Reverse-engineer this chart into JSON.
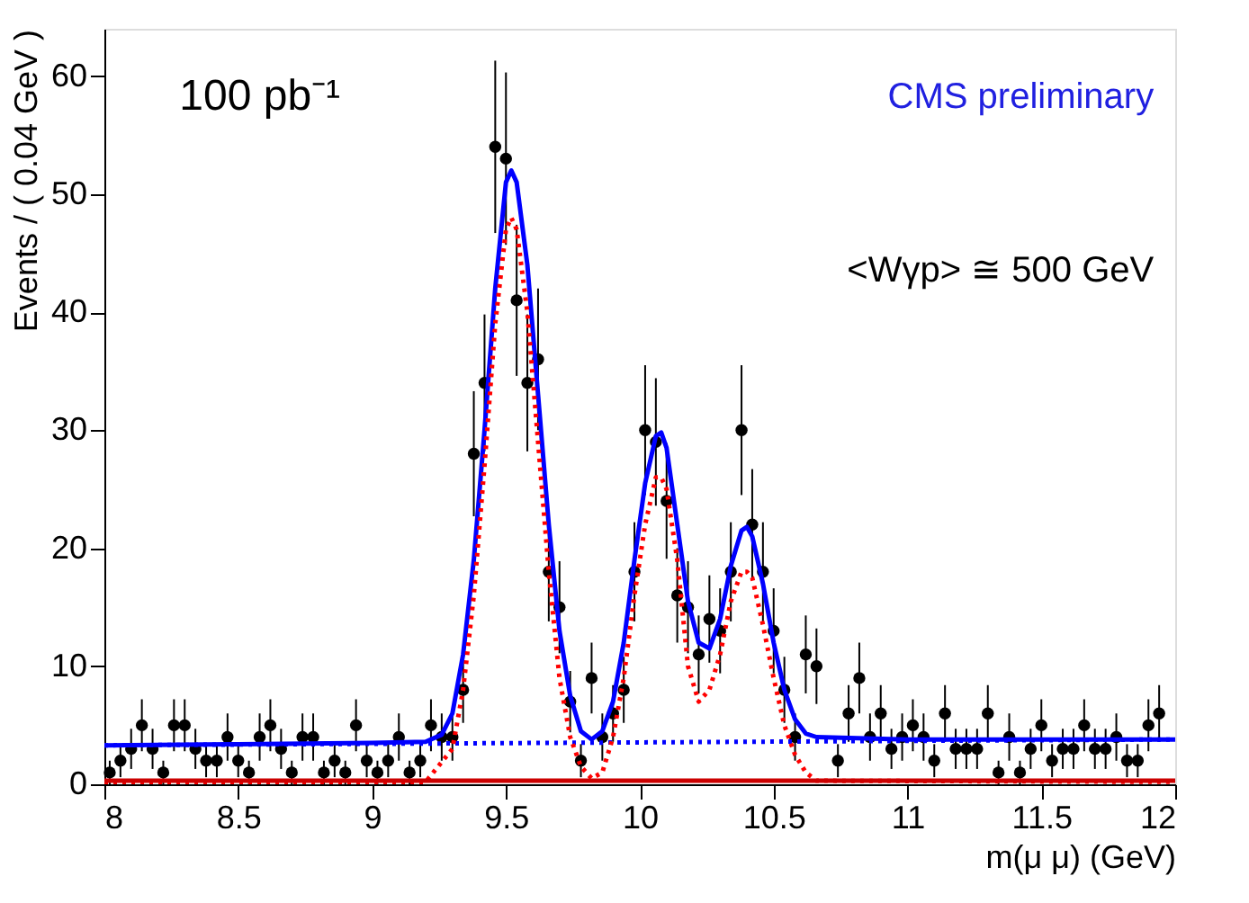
{
  "chart_data": {
    "type": "scatter",
    "xlabel": "m(μ μ) (GeV)",
    "ylabel": "Events / ( 0.04 GeV )",
    "xlim": [
      8,
      12
    ],
    "xticks": [
      8,
      8.5,
      9,
      9.5,
      10,
      10.5,
      11,
      11.5,
      12
    ],
    "ylim": [
      0,
      64
    ],
    "yticks": [
      0,
      10,
      20,
      30,
      40,
      50,
      60
    ],
    "annotations": [
      "100 pb⁻¹",
      "CMS preliminary",
      "<Wγp> ≅ 500 GeV"
    ],
    "series": [
      {
        "color": "#000000",
        "marker": "circle",
        "x": [
          8.02,
          8.06,
          8.1,
          8.14,
          8.18,
          8.22,
          8.26,
          8.3,
          8.34,
          8.38,
          8.42,
          8.46,
          8.5,
          8.54,
          8.58,
          8.62,
          8.66,
          8.7,
          8.74,
          8.78,
          8.82,
          8.86,
          8.9,
          8.94,
          8.98,
          9.02,
          9.06,
          9.1,
          9.14,
          9.18,
          9.22,
          9.26,
          9.3,
          9.34,
          9.38,
          9.42,
          9.46,
          9.5,
          9.54,
          9.58,
          9.62,
          9.66,
          9.7,
          9.74,
          9.78,
          9.82,
          9.86,
          9.9,
          9.94,
          9.98,
          10.02,
          10.06,
          10.1,
          10.14,
          10.18,
          10.22,
          10.26,
          10.3,
          10.34,
          10.38,
          10.42,
          10.46,
          10.5,
          10.54,
          10.58,
          10.62,
          10.66,
          10.74,
          10.78,
          10.82,
          10.86,
          10.9,
          10.94,
          10.98,
          11.02,
          11.06,
          11.1,
          11.14,
          11.18,
          11.22,
          11.26,
          11.3,
          11.34,
          11.38,
          11.42,
          11.46,
          11.5,
          11.54,
          11.58,
          11.62,
          11.66,
          11.7,
          11.74,
          11.78,
          11.82,
          11.86,
          11.9,
          11.94
        ],
        "values": [
          1,
          2,
          3,
          5,
          3,
          1,
          5,
          5,
          3,
          2,
          2,
          4,
          2,
          1,
          4,
          5,
          3,
          1,
          4,
          4,
          1,
          2,
          1,
          5,
          2,
          1,
          2,
          4,
          1,
          2,
          5,
          4,
          4,
          8,
          28,
          34,
          54,
          53,
          41,
          34,
          36,
          18,
          15,
          7,
          2,
          9,
          4,
          6,
          8,
          18,
          30,
          29,
          24,
          16,
          15,
          11,
          14,
          13,
          18,
          30,
          22,
          18,
          13,
          8,
          4,
          11,
          10,
          2,
          6,
          9,
          4,
          6,
          3,
          4,
          5,
          4,
          2,
          6,
          3,
          3,
          3,
          6,
          1,
          4,
          1,
          3,
          5,
          2,
          3,
          3,
          5,
          3,
          3,
          4,
          2,
          2,
          5,
          6
        ],
        "errors": [
          1,
          1.4,
          1.7,
          2.2,
          1.7,
          1,
          2.2,
          2.2,
          1.7,
          1.4,
          1.4,
          2,
          1.4,
          1,
          2,
          2.2,
          1.7,
          1,
          2,
          2,
          1,
          1.4,
          1,
          2.2,
          1.4,
          1,
          1.4,
          2,
          1,
          1.4,
          2.2,
          2,
          2,
          2.8,
          5.3,
          5.8,
          7.3,
          7.3,
          6.4,
          5.8,
          6,
          4.2,
          3.9,
          2.6,
          1.4,
          3,
          2,
          2.4,
          2.8,
          4.2,
          5.5,
          5.4,
          4.9,
          4,
          3.9,
          3.3,
          3.7,
          3.6,
          4.2,
          5.5,
          4.7,
          4.2,
          3.6,
          2.8,
          2,
          3.3,
          3.2,
          1.4,
          2.4,
          3,
          2,
          2.4,
          1.7,
          2,
          2.2,
          2,
          1.4,
          2.4,
          1.7,
          1.7,
          1.7,
          2.4,
          1,
          2,
          1,
          1.7,
          2.2,
          1.4,
          1.7,
          1.7,
          2.2,
          1.7,
          1.7,
          2,
          1.4,
          1.4,
          2.2,
          2.4
        ]
      },
      {
        "type": "line",
        "color": "#0000ff",
        "line_style": "solid",
        "x": [
          8,
          8.5,
          9,
          9.2,
          9.26,
          9.3,
          9.34,
          9.38,
          9.42,
          9.46,
          9.5,
          9.52,
          9.54,
          9.58,
          9.62,
          9.66,
          9.7,
          9.74,
          9.78,
          9.82,
          9.86,
          9.9,
          9.94,
          9.98,
          10.02,
          10.06,
          10.08,
          10.1,
          10.14,
          10.18,
          10.22,
          10.26,
          10.3,
          10.34,
          10.38,
          10.4,
          10.42,
          10.46,
          10.5,
          10.54,
          10.58,
          10.62,
          10.66,
          11,
          11.5,
          12
        ],
        "values": [
          3.3,
          3.4,
          3.5,
          3.6,
          4.2,
          6,
          11,
          19,
          30,
          42,
          51,
          52,
          51,
          44,
          33,
          22,
          13,
          7.5,
          4.5,
          3.8,
          4.5,
          7,
          12,
          19,
          25.5,
          29.5,
          29.8,
          28.5,
          22,
          15.5,
          12,
          11.5,
          14,
          18.5,
          21.5,
          21.8,
          21,
          17,
          12,
          8,
          5.5,
          4.3,
          4,
          3.8,
          3.8,
          3.8
        ]
      },
      {
        "type": "line",
        "color": "#0000ff",
        "line_style": "dotted",
        "x": [
          8,
          12
        ],
        "values": [
          3.3,
          3.8
        ]
      },
      {
        "type": "line",
        "color": "#ff0000",
        "line_style": "dotted",
        "x": [
          8,
          9.2,
          9.3,
          9.34,
          9.38,
          9.42,
          9.46,
          9.5,
          9.52,
          9.54,
          9.58,
          9.62,
          9.66,
          9.7,
          9.74,
          9.78,
          9.82,
          9.86,
          9.9,
          9.94,
          9.98,
          10.02,
          10.06,
          10.08,
          10.1,
          10.14,
          10.18,
          10.22,
          10.26,
          10.3,
          10.34,
          10.38,
          10.4,
          10.42,
          10.46,
          10.5,
          10.54,
          10.58,
          10.62,
          10.66,
          12
        ],
        "values": [
          0.2,
          0.2,
          3,
          8,
          16,
          27,
          39,
          47,
          48,
          47,
          40,
          29,
          18,
          9,
          4,
          1.5,
          0.5,
          1,
          4,
          9,
          16,
          22,
          26,
          26,
          25,
          19,
          10,
          7,
          8,
          11,
          15.5,
          18,
          18,
          17.5,
          13.5,
          9,
          5,
          2.5,
          1,
          0.3,
          0.2
        ]
      },
      {
        "type": "line",
        "color": "#cc0000",
        "line_style": "solid",
        "x": [
          8,
          12
        ],
        "values": [
          0.3,
          0.3
        ]
      }
    ]
  }
}
